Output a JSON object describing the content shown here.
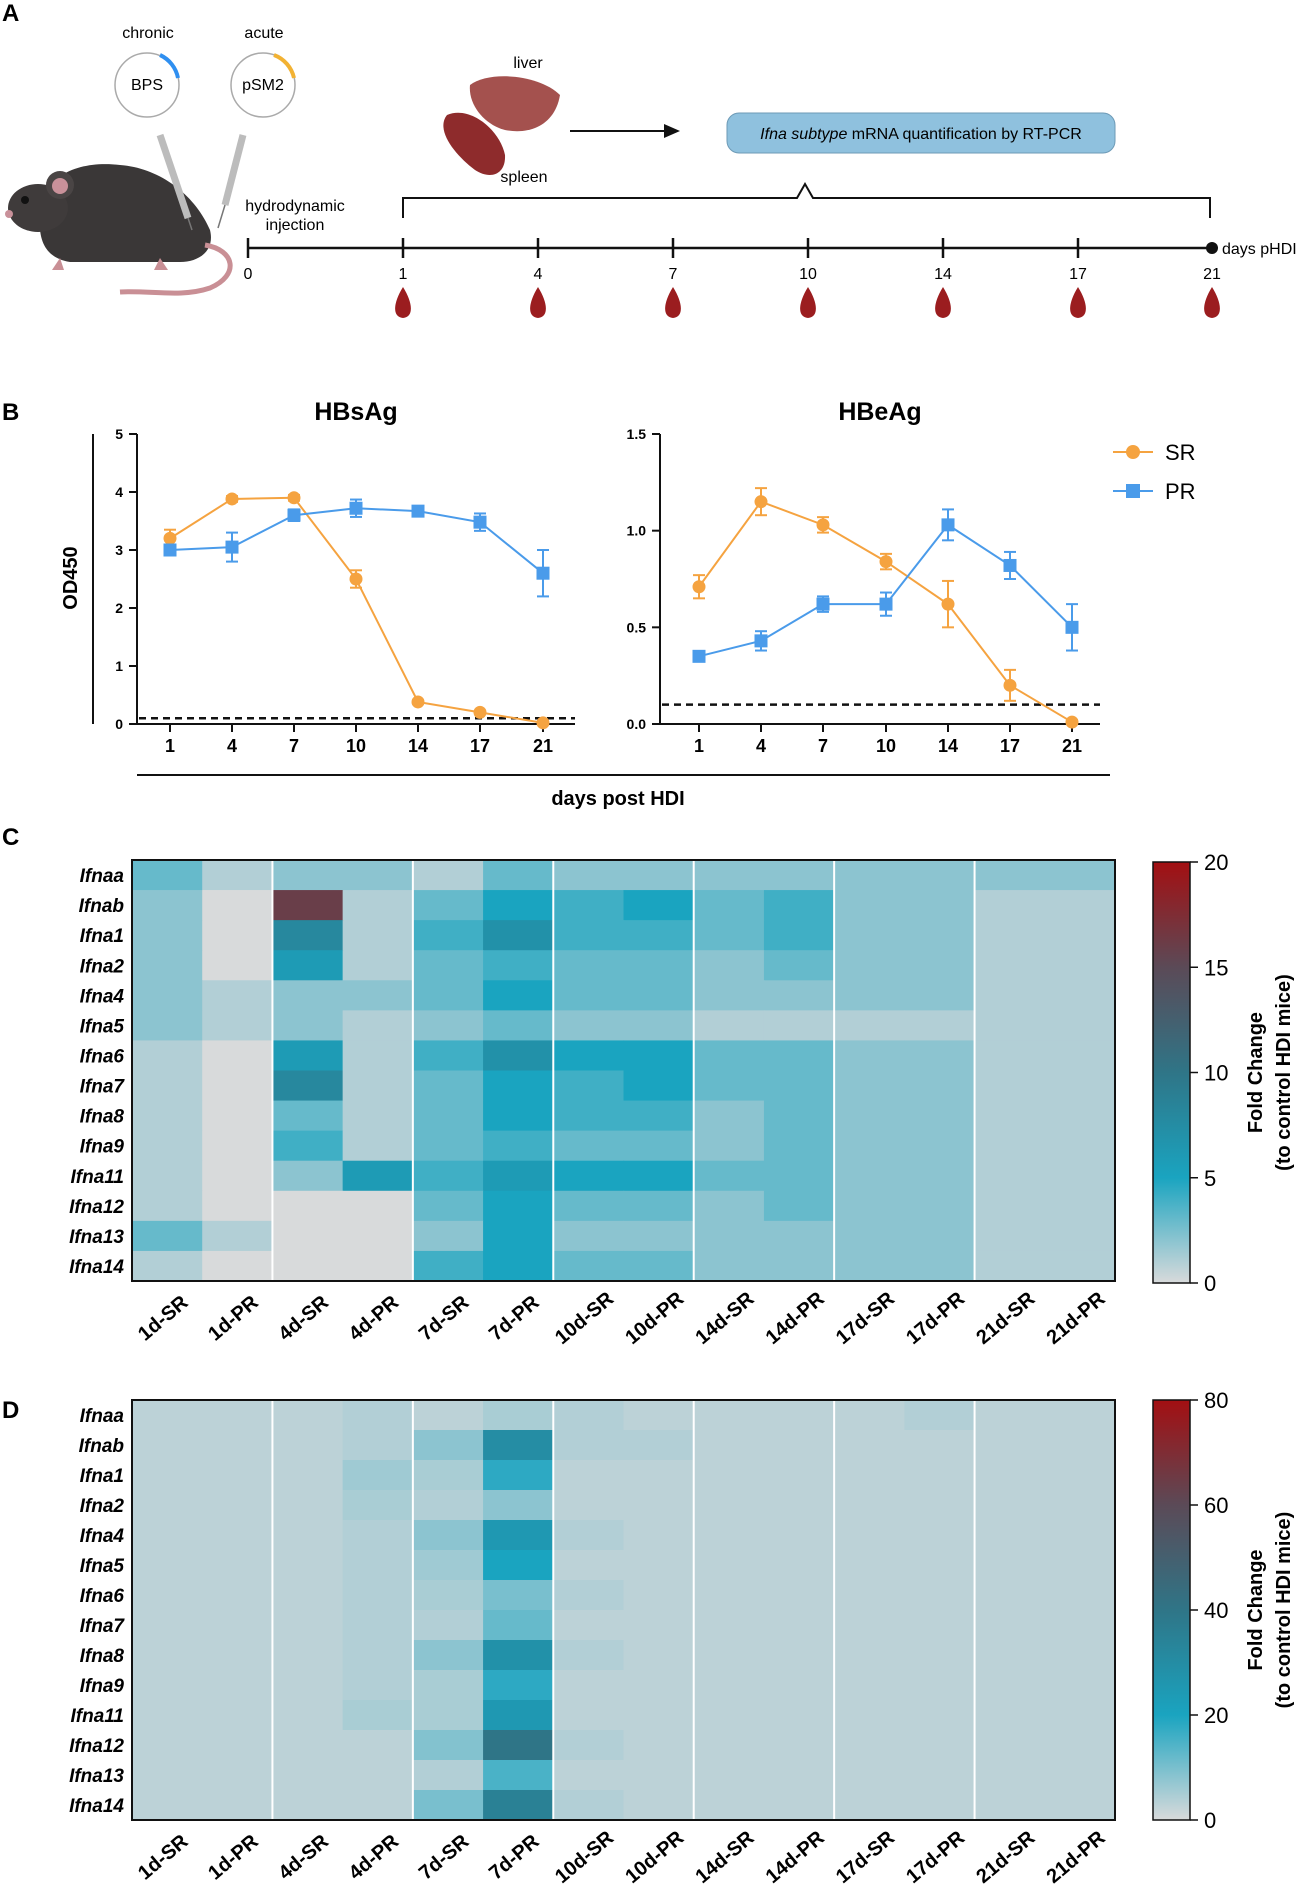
{
  "panels": {
    "a": "A",
    "b": "B",
    "c": "C",
    "d": "D"
  },
  "schematic": {
    "plasmid_chronic_label": "chronic",
    "plasmid_chronic_name": "BPS",
    "plasmid_acute_label": "acute",
    "plasmid_acute_name": "pSM2",
    "injection_label_1": "hydrodynamic",
    "injection_label_2": "injection",
    "organ_liver": "liver",
    "organ_spleen": "spleen",
    "assay_italic": "Ifna subtype",
    "assay_rest": " mRNA quantification by RT-PCR",
    "timeline_days": [
      "0",
      "1",
      "4",
      "7",
      "10",
      "14",
      "17",
      "21"
    ],
    "timeline_end_label": "days pHDI",
    "colors": {
      "plasmid_chronic": "#2f8ff0",
      "plasmid_acute": "#f2b233",
      "assay_box": "#8fc1de",
      "blood": "#9b1d1f"
    }
  },
  "chart_data": [
    {
      "type": "line",
      "title": "HBsAg",
      "ylabel": "OD450",
      "xlabel": "days post  HDI",
      "categories": [
        "1",
        "4",
        "7",
        "10",
        "14",
        "17",
        "21"
      ],
      "ylim": [
        0,
        5
      ],
      "yticks": [
        "0",
        "1",
        "2",
        "3",
        "4",
        "5"
      ],
      "cutoff": 0.1,
      "series": [
        {
          "name": "SR",
          "color": "#f5a340",
          "marker": "circle",
          "values": [
            3.2,
            3.88,
            3.9,
            2.5,
            0.38,
            0.2,
            0.02
          ],
          "errors": [
            0.15,
            0.05,
            0.05,
            0.15,
            0.03,
            0.02,
            0.01
          ]
        },
        {
          "name": "PR",
          "color": "#4a9bea",
          "marker": "square",
          "values": [
            3.0,
            3.05,
            3.6,
            3.72,
            3.67,
            3.48,
            2.6
          ],
          "errors": [
            0.08,
            0.25,
            0.1,
            0.15,
            0.05,
            0.15,
            0.4
          ]
        }
      ]
    },
    {
      "type": "line",
      "title": "HBeAg",
      "categories": [
        "1",
        "4",
        "7",
        "10",
        "14",
        "17",
        "21"
      ],
      "ylim": [
        0,
        1.5
      ],
      "yticks": [
        "0.0",
        "0.5",
        "1.0",
        "1.5"
      ],
      "cutoff": 0.1,
      "legend_position": "top-right",
      "series": [
        {
          "name": "SR",
          "color": "#f5a340",
          "marker": "circle",
          "values": [
            0.71,
            1.15,
            1.03,
            0.84,
            0.62,
            0.2,
            0.01
          ],
          "errors": [
            0.06,
            0.07,
            0.04,
            0.04,
            0.12,
            0.08,
            0.01
          ]
        },
        {
          "name": "PR",
          "color": "#4a9bea",
          "marker": "square",
          "values": [
            0.35,
            0.43,
            0.62,
            0.62,
            1.03,
            0.82,
            0.5
          ],
          "errors": [
            0.02,
            0.05,
            0.04,
            0.06,
            0.08,
            0.07,
            0.12
          ]
        }
      ]
    },
    {
      "type": "heatmap",
      "panel": "C",
      "rows": [
        "Ifnaa",
        "Ifnab",
        "Ifna1",
        "Ifna2",
        "Ifna4",
        "Ifna5",
        "Ifna6",
        "Ifna7",
        "Ifna8",
        "Ifna9",
        "Ifna11",
        "Ifna12",
        "Ifna13",
        "Ifna14"
      ],
      "columns": [
        "1d-SR",
        "1d-PR",
        "4d-SR",
        "4d-PR",
        "7d-SR",
        "7d-PR",
        "10d-SR",
        "10d-PR",
        "14d-SR",
        "14d-PR",
        "17d-SR",
        "17d-PR",
        "21d-SR",
        "21d-PR"
      ],
      "values": [
        [
          3,
          1,
          2,
          2,
          1,
          3,
          2,
          2,
          2,
          2,
          2,
          2,
          2,
          2
        ],
        [
          2,
          0,
          16,
          1,
          3,
          5,
          4,
          5,
          3,
          4,
          2,
          2,
          1,
          1
        ],
        [
          2,
          0,
          8,
          1,
          4,
          7,
          4,
          4,
          3,
          4,
          2,
          2,
          1,
          1
        ],
        [
          2,
          0,
          6,
          1,
          3,
          4,
          3,
          3,
          2,
          3,
          2,
          2,
          1,
          1
        ],
        [
          2,
          1,
          2,
          2,
          3,
          5,
          3,
          3,
          2,
          2,
          2,
          2,
          1,
          1
        ],
        [
          2,
          1,
          2,
          1,
          2,
          3,
          2,
          2,
          1,
          1,
          1,
          1,
          1,
          1
        ],
        [
          1,
          0,
          6,
          1,
          4,
          7,
          5,
          5,
          3,
          3,
          2,
          2,
          1,
          1
        ],
        [
          1,
          0,
          8,
          1,
          3,
          5,
          4,
          5,
          3,
          3,
          2,
          2,
          1,
          1
        ],
        [
          1,
          0,
          3,
          1,
          3,
          5,
          4,
          4,
          2,
          3,
          2,
          2,
          1,
          1
        ],
        [
          1,
          0,
          4,
          1,
          3,
          4,
          3,
          3,
          2,
          3,
          2,
          2,
          1,
          1
        ],
        [
          1,
          0,
          2,
          6,
          4,
          6,
          5,
          5,
          3,
          3,
          2,
          2,
          1,
          1
        ],
        [
          1,
          0,
          0,
          0,
          3,
          5,
          3,
          3,
          2,
          3,
          2,
          2,
          1,
          1
        ],
        [
          3,
          1,
          0,
          0,
          2,
          5,
          2,
          2,
          2,
          2,
          2,
          2,
          1,
          1
        ],
        [
          1,
          0,
          0,
          0,
          4,
          5,
          3,
          3,
          2,
          2,
          2,
          2,
          1,
          1
        ]
      ],
      "vmin": 0,
      "vmax": 20,
      "colorbar_ticks": [
        "0",
        "5",
        "10",
        "15",
        "20"
      ],
      "colorbar_label_1": "Fold Change",
      "colorbar_label_2": "(to control HDI mice)"
    },
    {
      "type": "heatmap",
      "panel": "D",
      "rows": [
        "Ifnaa",
        "Ifnab",
        "Ifna1",
        "Ifna2",
        "Ifna4",
        "Ifna5",
        "Ifna6",
        "Ifna7",
        "Ifna8",
        "Ifna9",
        "Ifna11",
        "Ifna12",
        "Ifna13",
        "Ifna14"
      ],
      "columns": [
        "1d-SR",
        "1d-PR",
        "4d-SR",
        "4d-PR",
        "7d-SR",
        "7d-PR",
        "10d-SR",
        "10d-PR",
        "14d-SR",
        "14d-PR",
        "17d-SR",
        "17d-PR",
        "21d-SR",
        "21d-PR"
      ],
      "values": [
        [
          3,
          3,
          3,
          4,
          3,
          5,
          4,
          3,
          3,
          3,
          3,
          4,
          3,
          3
        ],
        [
          3,
          3,
          3,
          4,
          8,
          30,
          4,
          4,
          3,
          3,
          3,
          3,
          3,
          3
        ],
        [
          3,
          3,
          3,
          6,
          5,
          18,
          3,
          3,
          3,
          3,
          3,
          3,
          3,
          3
        ],
        [
          3,
          3,
          3,
          5,
          4,
          8,
          3,
          3,
          3,
          3,
          3,
          3,
          3,
          3
        ],
        [
          3,
          3,
          3,
          4,
          8,
          25,
          4,
          3,
          3,
          3,
          3,
          3,
          3,
          3
        ],
        [
          3,
          3,
          3,
          4,
          6,
          20,
          3,
          3,
          3,
          3,
          3,
          3,
          3,
          3
        ],
        [
          3,
          3,
          3,
          4,
          5,
          10,
          4,
          3,
          3,
          3,
          3,
          3,
          3,
          3
        ],
        [
          3,
          3,
          3,
          4,
          4,
          12,
          3,
          3,
          3,
          3,
          3,
          3,
          3,
          3
        ],
        [
          3,
          3,
          3,
          4,
          8,
          28,
          4,
          3,
          3,
          3,
          3,
          3,
          3,
          3
        ],
        [
          3,
          3,
          3,
          4,
          5,
          18,
          3,
          3,
          3,
          3,
          3,
          3,
          3,
          3
        ],
        [
          3,
          3,
          3,
          5,
          5,
          25,
          3,
          3,
          3,
          3,
          3,
          3,
          3,
          3
        ],
        [
          3,
          3,
          3,
          3,
          9,
          40,
          4,
          3,
          3,
          3,
          3,
          3,
          3,
          3
        ],
        [
          3,
          3,
          3,
          3,
          4,
          15,
          3,
          3,
          3,
          3,
          3,
          3,
          3,
          3
        ],
        [
          3,
          3,
          3,
          3,
          10,
          35,
          4,
          3,
          3,
          3,
          3,
          3,
          3,
          3
        ]
      ],
      "vmin": 0,
      "vmax": 80,
      "colorbar_ticks": [
        "0",
        "20",
        "40",
        "60",
        "80"
      ],
      "colorbar_label_1": "Fold Change",
      "colorbar_label_2": "(to control HDI mice)"
    }
  ]
}
